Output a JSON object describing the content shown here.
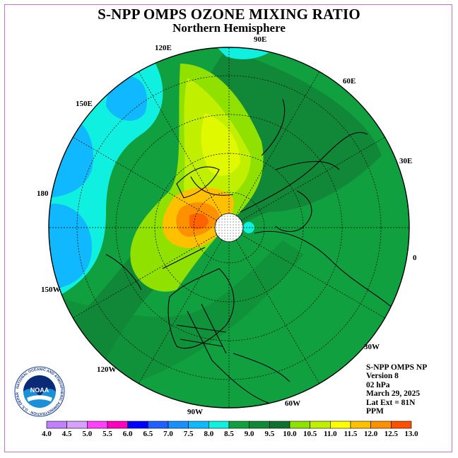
{
  "title": "S-NPP OMPS OZONE MIXING RATIO",
  "subtitle": "Northern Hemisphere",
  "longitude_labels": {
    "e90": "90E",
    "e60": "60E",
    "e30": "30E",
    "zero": "0",
    "w30": "30W",
    "w60": "60W",
    "w90": "90W",
    "w120": "120W",
    "w150": "150W",
    "d180": "180",
    "e150": "150E",
    "e120": "120E"
  },
  "info": {
    "line1": "S-NPP OMPS NP",
    "line2": "Version 8",
    "line3": "02 hPa",
    "line4": "March 29, 2025",
    "line5": "Lat Ext = 81N",
    "line6": "PPM"
  },
  "colorbar": {
    "labels": [
      "4.0",
      "4.5",
      "5.0",
      "5.5",
      "6.0",
      "6.5",
      "7.0",
      "7.5",
      "8.0",
      "8.5",
      "9.0",
      "9.5",
      "10.0",
      "10.5",
      "11.0",
      "11.5",
      "12.0",
      "12.5",
      "13.0"
    ],
    "colors": [
      "#c080ff",
      "#d8a0ff",
      "#ff40ff",
      "#ff00c0",
      "#0000ff",
      "#2060ff",
      "#1890ff",
      "#10b8ff",
      "#10f0e0",
      "#10a040",
      "#108838",
      "#107030",
      "#90e000",
      "#c0f000",
      "#ffff00",
      "#ffc000",
      "#ff9000",
      "#ff5000",
      "#ff0000",
      "#a06030"
    ]
  },
  "logo": {
    "text": "NOAA",
    "ring_text": "NATIONAL OCEANIC AND ATMOSPHERIC ADMINISTRATION · U.S. DEPARTMENT OF COMMERCE"
  }
}
